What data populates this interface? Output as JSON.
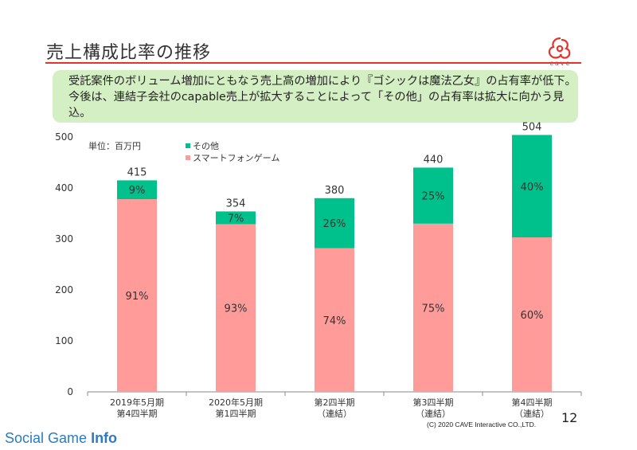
{
  "slide": {
    "title": "売上構成比率の推移",
    "logo_word": "cave",
    "callout": "受託案件のボリューム増加にともなう売上高の増加により『ゴシックは魔法乙女』の占有率が低下。今後は、連結子会社のcapable売上が拡大することによって「その他」の占有率は拡大に向かう見込。",
    "page_number": "12",
    "copyright": "(C) 2020 CAVE Interactive CO.,LTD.",
    "watermark_main": "Social Game",
    "watermark_bold": "Info"
  },
  "colors": {
    "accent_red": "#e8332b",
    "smartphone": "#ff9c9a",
    "other": "#00c08b",
    "callout_bg": "#d5efc4"
  },
  "chart_data": {
    "type": "bar",
    "stacked": true,
    "unit_label": "単位：百万円",
    "categories": [
      [
        "2019年5月期",
        "第4四半期"
      ],
      [
        "2020年5月期",
        "第1四半期"
      ],
      [
        "第2四半期",
        "（連結）"
      ],
      [
        "第3四半期",
        "（連結）"
      ],
      [
        "第4四半期",
        "（連結）"
      ]
    ],
    "totals": [
      415,
      354,
      380,
      440,
      504
    ],
    "series": [
      {
        "name": "スマートフォンゲーム",
        "color": "#ff9c9a",
        "values": [
          378,
          329,
          282,
          330,
          303
        ],
        "labels": [
          "91%",
          "93%",
          "74%",
          "75%",
          "60%"
        ]
      },
      {
        "name": "その他",
        "color": "#00c08b",
        "values": [
          37,
          25,
          98,
          110,
          201
        ],
        "labels": [
          "9%",
          "7%",
          "26%",
          "25%",
          "40%"
        ]
      }
    ],
    "ylim": [
      0,
      500
    ],
    "yticks": [
      0,
      100,
      200,
      300,
      400,
      500
    ],
    "legend_position": "top-left",
    "grid": false
  }
}
